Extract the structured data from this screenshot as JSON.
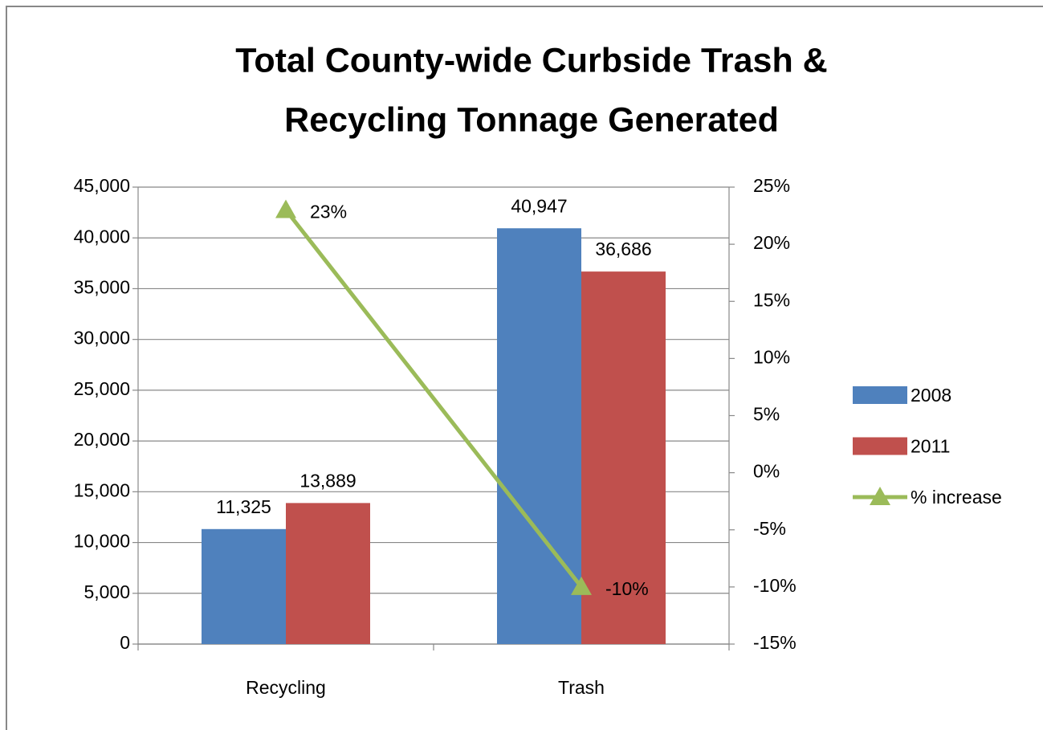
{
  "chart_data": {
    "type": "bar",
    "title": [
      "Total County-wide Curbside Trash &",
      "Recycling Tonnage Generated"
    ],
    "categories": [
      "Recycling",
      "Trash"
    ],
    "series": [
      {
        "name": "2008",
        "color": "#4f81bd",
        "values": [
          11325,
          40947
        ],
        "value_labels": [
          "11,325",
          "40,947"
        ]
      },
      {
        "name": "2011",
        "color": "#c0504d",
        "values": [
          13889,
          36686
        ],
        "value_labels": [
          "13,889",
          "36,686"
        ]
      },
      {
        "name": "% increase",
        "color": "#9bbb59",
        "type": "line",
        "axis": "y2",
        "values": [
          23,
          -10
        ],
        "value_labels": [
          "23%",
          "-10%"
        ]
      }
    ],
    "ylim": [
      0,
      45000
    ],
    "yticks": [
      0,
      {
        "value": 5000,
        "label": "5,000"
      },
      {
        "value": 10000,
        "label": "10,000"
      },
      {
        "value": 15000,
        "label": "15,000"
      },
      {
        "value": 20000,
        "label": "20,000"
      },
      {
        "value": 25000,
        "label": "25,000"
      },
      {
        "value": 30000,
        "label": "30,000"
      },
      {
        "value": 35000,
        "label": "35,000"
      },
      {
        "value": 40000,
        "label": "40,000"
      },
      {
        "value": 45000,
        "label": "45,000"
      }
    ],
    "y2lim": [
      -15,
      25
    ],
    "y2ticks": [
      {
        "value": -15,
        "label": "-15%"
      },
      {
        "value": -10,
        "label": "-10%"
      },
      {
        "value": -5,
        "label": "-5%"
      },
      {
        "value": 0,
        "label": "0%"
      },
      {
        "value": 5,
        "label": "5%"
      },
      {
        "value": 10,
        "label": "10%"
      },
      {
        "value": 15,
        "label": "15%"
      },
      {
        "value": 20,
        "label": "20%"
      },
      {
        "value": 25,
        "label": "25%"
      }
    ],
    "grid": true,
    "legend": "right"
  }
}
